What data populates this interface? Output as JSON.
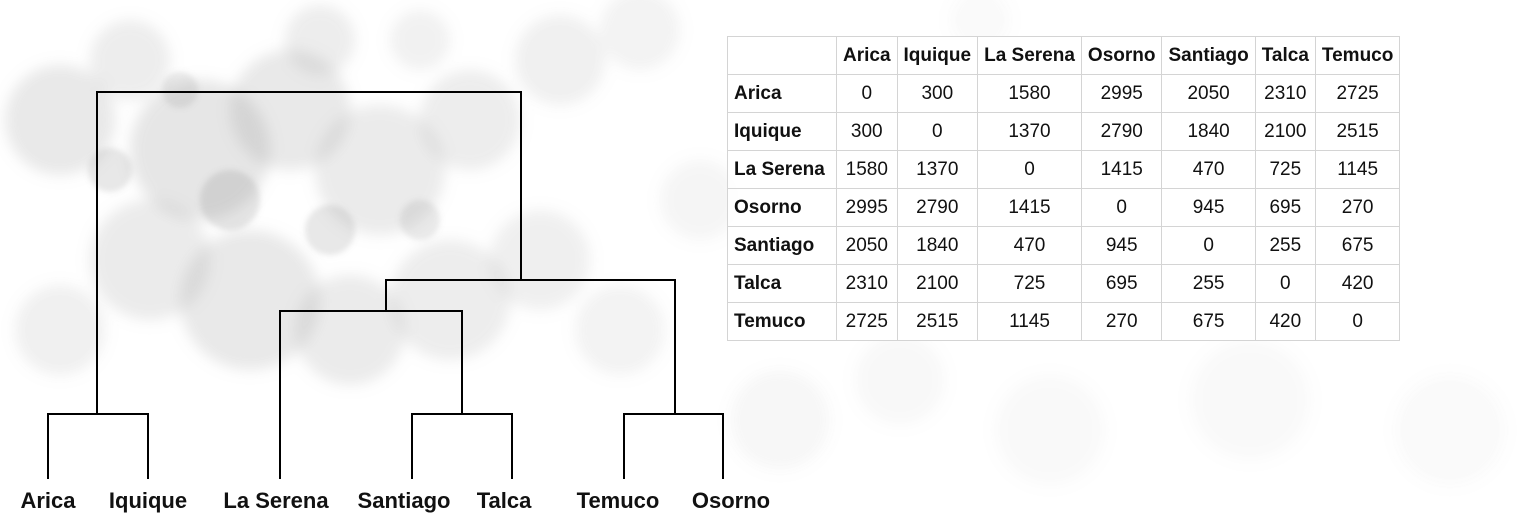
{
  "dendrogram": {
    "leaves": [
      "Arica",
      "Iquique",
      "La Serena",
      "Santiago",
      "Talca",
      "Temuco",
      "Osorno"
    ]
  },
  "distance_table": {
    "columns": [
      "Arica",
      "Iquique",
      "La Serena",
      "Osorno",
      "Santiago",
      "Talca",
      "Temuco"
    ],
    "rows": [
      {
        "label": "Arica",
        "values": [
          "0",
          "300",
          "1580",
          "2995",
          "2050",
          "2310",
          "2725"
        ]
      },
      {
        "label": "Iquique",
        "values": [
          "300",
          "0",
          "1370",
          "2790",
          "1840",
          "2100",
          "2515"
        ]
      },
      {
        "label": "La Serena",
        "values": [
          "1580",
          "1370",
          "0",
          "1415",
          "470",
          "725",
          "1145"
        ]
      },
      {
        "label": "Osorno",
        "values": [
          "2995",
          "2790",
          "1415",
          "0",
          "945",
          "695",
          "270"
        ]
      },
      {
        "label": "Santiago",
        "values": [
          "2050",
          "1840",
          "470",
          "945",
          "0",
          "255",
          "675"
        ]
      },
      {
        "label": "Talca",
        "values": [
          "2310",
          "2100",
          "725",
          "695",
          "255",
          "0",
          "420"
        ]
      },
      {
        "label": "Temuco",
        "values": [
          "2725",
          "2515",
          "1145",
          "270",
          "675",
          "420",
          "0"
        ]
      }
    ]
  },
  "colors": {
    "line": "#000000",
    "text": "#111111",
    "grid": "#d4d4d4",
    "bubble": "#9a9a9a"
  }
}
